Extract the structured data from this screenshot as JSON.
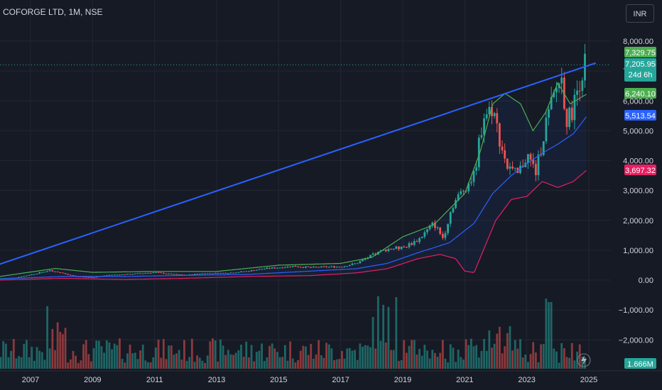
{
  "header": {
    "symbol": "COFORGE LTD, 1M, NSE",
    "currency": "INR"
  },
  "price_labels": {
    "close": "7,329.75",
    "current": "7,205.95",
    "countdown": "24d 6h",
    "bb_upper": "6,240.10",
    "bb_basis": "5,513.54",
    "bb_lower": "3,697.32",
    "volume": "1.666M"
  },
  "colors": {
    "background": "#161a25",
    "up": "#26a69a",
    "down": "#ef5350",
    "trendline": "#2962ff",
    "ma_blue": "#2962ff",
    "band_upper": "#4caf50",
    "band_lower": "#e91e63",
    "grid": "#232733",
    "text": "#d1d4dc",
    "green_label": "#4caf50",
    "blue_label": "#2962ff",
    "pink_label": "#e91e63"
  },
  "chart_data": {
    "type": "candlestick",
    "title": "COFORGE LTD, 1M, NSE",
    "y_ticks": [
      "8,000.00",
      "7,000.00",
      "6,000.00",
      "5,000.00",
      "4,000.00",
      "3,000.00",
      "2,000.00",
      "1,000.00",
      "0.00",
      "−1,000.00",
      "−2,000.00"
    ],
    "y_tick_values": [
      8000,
      7000,
      6000,
      5000,
      4000,
      3000,
      2000,
      1000,
      0,
      -1000,
      -2000
    ],
    "x_ticks": [
      "2007",
      "2009",
      "2011",
      "2013",
      "2015",
      "2017",
      "2019",
      "2021",
      "2023",
      "2025"
    ],
    "x_tick_values": [
      2007,
      2009,
      2011,
      2013,
      2015,
      2017,
      2019,
      2021,
      2023,
      2025
    ],
    "ylim": [
      -2600,
      8800
    ],
    "xlim": [
      2006.0,
      2025.4
    ],
    "trendline": {
      "from": [
        2006.0,
        530
      ],
      "to": [
        2024.95,
        7150
      ]
    },
    "close_series": [
      [
        2006.0,
        60
      ],
      [
        2006.5,
        80
      ],
      [
        2007.0,
        180
      ],
      [
        2007.6,
        320
      ],
      [
        2008.0,
        230
      ],
      [
        2008.5,
        120
      ],
      [
        2009.0,
        90
      ],
      [
        2009.5,
        170
      ],
      [
        2010.0,
        190
      ],
      [
        2010.5,
        220
      ],
      [
        2011.0,
        260
      ],
      [
        2011.5,
        200
      ],
      [
        2012.0,
        170
      ],
      [
        2012.5,
        220
      ],
      [
        2013.0,
        230
      ],
      [
        2013.5,
        250
      ],
      [
        2014.0,
        300
      ],
      [
        2014.5,
        380
      ],
      [
        2015.0,
        420
      ],
      [
        2015.5,
        470
      ],
      [
        2016.0,
        420
      ],
      [
        2016.5,
        440
      ],
      [
        2017.0,
        450
      ],
      [
        2017.5,
        560
      ],
      [
        2018.0,
        820
      ],
      [
        2018.5,
        1050
      ],
      [
        2019.0,
        1080
      ],
      [
        2019.5,
        1350
      ],
      [
        2020.0,
        1900
      ],
      [
        2020.3,
        1400
      ],
      [
        2020.6,
        2500
      ],
      [
        2021.0,
        3100
      ],
      [
        2021.3,
        3500
      ],
      [
        2021.6,
        5500
      ],
      [
        2021.9,
        5800
      ],
      [
        2022.1,
        4800
      ],
      [
        2022.4,
        3700
      ],
      [
        2022.7,
        3500
      ],
      [
        2023.0,
        4200
      ],
      [
        2023.3,
        3600
      ],
      [
        2023.6,
        5200
      ],
      [
        2023.9,
        6200
      ],
      [
        2024.1,
        6900
      ],
      [
        2024.3,
        5300
      ],
      [
        2024.5,
        5800
      ],
      [
        2024.7,
        6700
      ],
      [
        2024.9,
        7330
      ]
    ],
    "ma_series": [
      [
        2006.0,
        40
      ],
      [
        2008.0,
        120
      ],
      [
        2010.0,
        120
      ],
      [
        2012.0,
        160
      ],
      [
        2014.0,
        190
      ],
      [
        2016.0,
        300
      ],
      [
        2017.5,
        380
      ],
      [
        2018.5,
        560
      ],
      [
        2019.5,
        920
      ],
      [
        2020.5,
        1250
      ],
      [
        2021.3,
        1900
      ],
      [
        2021.9,
        2900
      ],
      [
        2022.5,
        3500
      ],
      [
        2023.0,
        3900
      ],
      [
        2023.5,
        4250
      ],
      [
        2024.0,
        4550
      ],
      [
        2024.5,
        4900
      ],
      [
        2024.95,
        5510
      ]
    ],
    "upper_series": [
      [
        2006.0,
        120
      ],
      [
        2007.8,
        390
      ],
      [
        2009.0,
        260
      ],
      [
        2011.0,
        290
      ],
      [
        2013.0,
        290
      ],
      [
        2015.0,
        500
      ],
      [
        2017.0,
        560
      ],
      [
        2018.0,
        760
      ],
      [
        2019.0,
        1450
      ],
      [
        2020.0,
        1850
      ],
      [
        2021.0,
        2900
      ],
      [
        2021.5,
        4300
      ],
      [
        2021.9,
        5900
      ],
      [
        2022.3,
        6250
      ],
      [
        2022.8,
        5900
      ],
      [
        2023.2,
        5000
      ],
      [
        2023.6,
        5600
      ],
      [
        2024.0,
        6600
      ],
      [
        2024.4,
        5900
      ],
      [
        2024.95,
        6240
      ]
    ],
    "lower_series": [
      [
        2006.0,
        0
      ],
      [
        2008.0,
        60
      ],
      [
        2010.0,
        20
      ],
      [
        2012.0,
        60
      ],
      [
        2014.0,
        120
      ],
      [
        2016.0,
        150
      ],
      [
        2017.5,
        240
      ],
      [
        2018.5,
        380
      ],
      [
        2019.5,
        720
      ],
      [
        2020.2,
        860
      ],
      [
        2020.7,
        720
      ],
      [
        2021.0,
        300
      ],
      [
        2021.3,
        250
      ],
      [
        2021.6,
        1000
      ],
      [
        2022.0,
        2000
      ],
      [
        2022.5,
        2700
      ],
      [
        2023.0,
        2800
      ],
      [
        2023.5,
        3300
      ],
      [
        2024.0,
        3100
      ],
      [
        2024.5,
        3300
      ],
      [
        2024.95,
        3700
      ]
    ],
    "volume_axis_label": "1.666M"
  }
}
